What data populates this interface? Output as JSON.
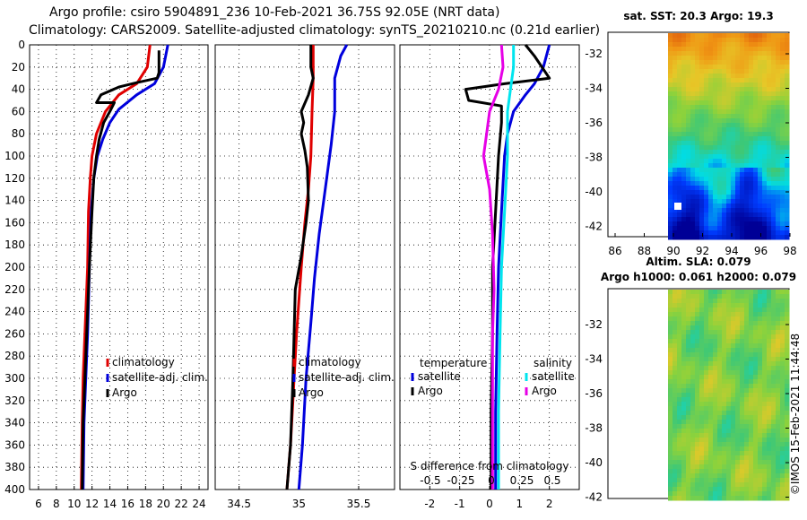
{
  "title": {
    "line1": "Argo profile: csiro 5904891_236 10-Feb-2021 36.75S 92.05E (NRT data)",
    "line2": "Climatology: CARS2009. Satellite-adjusted climatology: synTS_20210210.nc (0.21d earlier)"
  },
  "colors": {
    "climatology": "#e00000",
    "satellite": "#0000dd",
    "argo": "#000000",
    "sat_salinity": "#00e5ee",
    "argo_salinity": "#e600e6"
  },
  "chart_data": [
    {
      "type": "line",
      "name": "temperature-profile",
      "xlim": [
        5,
        25
      ],
      "ylim": [
        400,
        0
      ],
      "xticks": [
        6,
        8,
        10,
        12,
        14,
        16,
        18,
        20,
        22,
        24
      ],
      "yticks": [
        0,
        20,
        40,
        60,
        80,
        100,
        120,
        140,
        160,
        180,
        200,
        220,
        240,
        260,
        280,
        300,
        320,
        340,
        360,
        380,
        400
      ],
      "legend": [
        "climatology",
        "satellite-adj. clim.",
        "Argo"
      ],
      "series": [
        {
          "name": "climatology",
          "color": "red",
          "points": [
            [
              18.5,
              0
            ],
            [
              18.2,
              20
            ],
            [
              17.0,
              35
            ],
            [
              15.0,
              45
            ],
            [
              13.5,
              60
            ],
            [
              12.5,
              80
            ],
            [
              12.0,
              100
            ],
            [
              11.8,
              120
            ],
            [
              11.6,
              150
            ],
            [
              11.5,
              200
            ],
            [
              11.2,
              260
            ],
            [
              11.0,
              300
            ],
            [
              10.9,
              340
            ],
            [
              10.8,
              400
            ]
          ]
        },
        {
          "name": "satellite-adj. clim.",
          "color": "blue",
          "points": [
            [
              20.5,
              0
            ],
            [
              20.0,
              20
            ],
            [
              19.0,
              35
            ],
            [
              17.0,
              45
            ],
            [
              15.0,
              58
            ],
            [
              14.0,
              70
            ],
            [
              13.2,
              85
            ],
            [
              12.6,
              100
            ],
            [
              12.2,
              120
            ],
            [
              11.9,
              150
            ],
            [
              11.7,
              200
            ],
            [
              11.5,
              260
            ],
            [
              11.3,
              300
            ],
            [
              11.1,
              340
            ],
            [
              11.0,
              400
            ]
          ]
        },
        {
          "name": "Argo",
          "color": "black",
          "points": [
            [
              19.5,
              5
            ],
            [
              19.5,
              25
            ],
            [
              19.3,
              30
            ],
            [
              17.0,
              34
            ],
            [
              15.0,
              38
            ],
            [
              13.0,
              45
            ],
            [
              12.5,
              52
            ],
            [
              14.5,
              52
            ],
            [
              14.0,
              60
            ],
            [
              13.3,
              70
            ],
            [
              12.8,
              85
            ],
            [
              12.5,
              100
            ],
            [
              12.2,
              120
            ],
            [
              12.0,
              150
            ],
            [
              11.7,
              200
            ],
            [
              11.4,
              260
            ],
            [
              11.2,
              300
            ],
            [
              11.0,
              340
            ],
            [
              10.9,
              400
            ]
          ]
        }
      ]
    },
    {
      "type": "line",
      "name": "salinity-profile",
      "xlim": [
        34.3,
        35.8
      ],
      "ylim": [
        400,
        0
      ],
      "xticks": [
        34.5,
        35,
        35.5
      ],
      "legend": [
        "climatology",
        "satellite-adj. clim.",
        "Argo"
      ],
      "series": [
        {
          "name": "climatology",
          "color": "red",
          "points": [
            [
              35.12,
              0
            ],
            [
              35.12,
              30
            ],
            [
              35.11,
              60
            ],
            [
              35.1,
              100
            ],
            [
              35.08,
              130
            ],
            [
              35.05,
              160
            ],
            [
              35.02,
              200
            ],
            [
              34.98,
              260
            ],
            [
              34.96,
              300
            ],
            [
              34.93,
              360
            ],
            [
              34.9,
              400
            ]
          ]
        },
        {
          "name": "satellite-adj. clim.",
          "color": "blue",
          "points": [
            [
              35.4,
              0
            ],
            [
              35.35,
              10
            ],
            [
              35.3,
              30
            ],
            [
              35.3,
              60
            ],
            [
              35.27,
              90
            ],
            [
              35.22,
              130
            ],
            [
              35.17,
              170
            ],
            [
              35.13,
              210
            ],
            [
              35.1,
              250
            ],
            [
              35.06,
              300
            ],
            [
              35.03,
              360
            ],
            [
              35.0,
              400
            ]
          ]
        },
        {
          "name": "Argo",
          "color": "black",
          "points": [
            [
              35.1,
              0
            ],
            [
              35.1,
              20
            ],
            [
              35.12,
              30
            ],
            [
              35.08,
              45
            ],
            [
              35.02,
              60
            ],
            [
              35.04,
              70
            ],
            [
              35.02,
              80
            ],
            [
              35.05,
              95
            ],
            [
              35.07,
              110
            ],
            [
              35.08,
              140
            ],
            [
              35.06,
              160
            ],
            [
              35.02,
              190
            ],
            [
              34.97,
              220
            ],
            [
              34.96,
              260
            ],
            [
              34.95,
              300
            ],
            [
              34.93,
              360
            ],
            [
              34.9,
              400
            ]
          ]
        }
      ]
    },
    {
      "type": "line",
      "name": "difference-from-climatology",
      "xlim": [
        -3,
        3
      ],
      "ylim": [
        400,
        0
      ],
      "xticks": [
        -2,
        -1,
        0,
        1,
        2
      ],
      "x2label": "S difference from climatology",
      "x2ticks": [
        "-0.5",
        "-0.25",
        "0",
        "0.25",
        "0.5"
      ],
      "legend": {
        "temperature": "temperature",
        "salinity": "salinity",
        "satellite": "satellite",
        "argo": "Argo"
      },
      "series": [
        {
          "name": "temperature satellite",
          "color": "blue",
          "points": [
            [
              2.0,
              0
            ],
            [
              1.8,
              20
            ],
            [
              1.5,
              35
            ],
            [
              1.2,
              45
            ],
            [
              0.8,
              60
            ],
            [
              0.6,
              80
            ],
            [
              0.5,
              100
            ],
            [
              0.4,
              150
            ],
            [
              0.3,
              200
            ],
            [
              0.25,
              260
            ],
            [
              0.2,
              330
            ],
            [
              0.2,
              400
            ]
          ]
        },
        {
          "name": "temperature Argo",
          "color": "black",
          "points": [
            [
              1.2,
              0
            ],
            [
              1.5,
              10
            ],
            [
              2.0,
              30
            ],
            [
              0.5,
              35
            ],
            [
              -0.8,
              40
            ],
            [
              -0.7,
              50
            ],
            [
              0.4,
              55
            ],
            [
              0.4,
              70
            ],
            [
              0.3,
              100
            ],
            [
              0.2,
              150
            ],
            [
              0.1,
              200
            ],
            [
              0.1,
              260
            ],
            [
              0.05,
              330
            ],
            [
              0.05,
              400
            ]
          ]
        },
        {
          "name": "salinity satellite",
          "color": "cyan",
          "points": [
            [
              0.8,
              0
            ],
            [
              0.8,
              20
            ],
            [
              0.7,
              40
            ],
            [
              0.6,
              60
            ],
            [
              0.6,
              100
            ],
            [
              0.5,
              150
            ],
            [
              0.4,
              200
            ],
            [
              0.35,
              260
            ],
            [
              0.3,
              330
            ],
            [
              0.3,
              400
            ]
          ]
        },
        {
          "name": "salinity Argo",
          "color": "magenta",
          "points": [
            [
              0.4,
              0
            ],
            [
              0.45,
              20
            ],
            [
              0.3,
              40
            ],
            [
              0.0,
              60
            ],
            [
              -0.1,
              80
            ],
            [
              -0.2,
              100
            ],
            [
              0.0,
              130
            ],
            [
              0.1,
              170
            ],
            [
              0.15,
              220
            ],
            [
              0.1,
              260
            ],
            [
              0.1,
              330
            ],
            [
              0.1,
              400
            ]
          ]
        }
      ]
    },
    {
      "type": "heatmap",
      "name": "sst-map",
      "title": "sat. SST: 20.3 Argo: 19.3",
      "xticks": [
        86,
        88,
        90,
        92,
        94,
        96,
        98
      ],
      "yticks": [
        -32,
        -34,
        -36,
        -38,
        -40,
        -42
      ]
    },
    {
      "type": "heatmap",
      "name": "sla-map",
      "title": "Altim. SLA: 0.079",
      "subtitle": "Argo h1000: 0.061 h2000: 0.079",
      "yticks": [
        -32,
        -34,
        -36,
        -38,
        -40,
        -42
      ]
    }
  ],
  "credit": "©IMOS 15-Feb-2021 11:44:48"
}
